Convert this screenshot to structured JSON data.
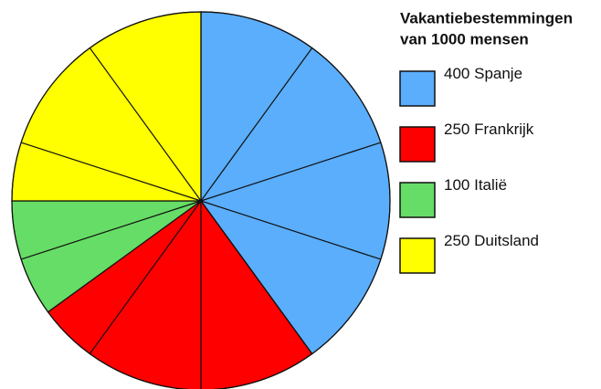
{
  "chart_data": {
    "type": "pie",
    "title": [
      "Vakantiebestemmingen",
      "van 1000 mensen"
    ],
    "categories": [
      "Spanje",
      "Frankrijk",
      "Italië",
      "Duitsland"
    ],
    "values": [
      400,
      250,
      100,
      250
    ],
    "colors": [
      "#5aaefc",
      "#ff0000",
      "#66dd66",
      "#ffff00"
    ]
  }
}
